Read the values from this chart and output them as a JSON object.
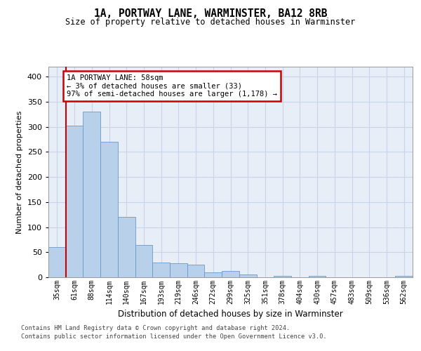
{
  "title": "1A, PORTWAY LANE, WARMINSTER, BA12 8RB",
  "subtitle": "Size of property relative to detached houses in Warminster",
  "xlabel": "Distribution of detached houses by size in Warminster",
  "ylabel": "Number of detached properties",
  "categories": [
    "35sqm",
    "61sqm",
    "88sqm",
    "114sqm",
    "140sqm",
    "167sqm",
    "193sqm",
    "219sqm",
    "246sqm",
    "272sqm",
    "299sqm",
    "325sqm",
    "351sqm",
    "378sqm",
    "404sqm",
    "430sqm",
    "457sqm",
    "483sqm",
    "509sqm",
    "536sqm",
    "562sqm"
  ],
  "values": [
    60,
    303,
    330,
    270,
    120,
    65,
    30,
    28,
    25,
    10,
    12,
    5,
    0,
    3,
    0,
    3,
    0,
    0,
    0,
    0,
    3
  ],
  "bar_color": "#b8d0ea",
  "bar_edge_color": "#6699cc",
  "grid_color": "#c8d4e8",
  "background_color": "#e8eef8",
  "annotation_text": "1A PORTWAY LANE: 58sqm\n← 3% of detached houses are smaller (33)\n97% of semi-detached houses are larger (1,178) →",
  "annotation_box_color": "#ffffff",
  "annotation_box_edge": "#cc0000",
  "marker_line_color": "#cc0000",
  "ylim": [
    0,
    420
  ],
  "yticks": [
    0,
    50,
    100,
    150,
    200,
    250,
    300,
    350,
    400
  ],
  "footer_line1": "Contains HM Land Registry data © Crown copyright and database right 2024.",
  "footer_line2": "Contains public sector information licensed under the Open Government Licence v3.0."
}
